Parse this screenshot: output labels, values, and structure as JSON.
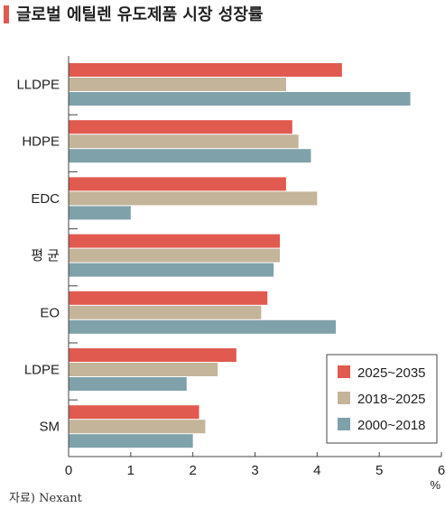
{
  "title": "글로벌 에틸렌 유도제품 시장 성장률",
  "source": "자료) Nexant",
  "colors": {
    "accent": "#e05a4f",
    "series": [
      "#e05a4f",
      "#c4b49a",
      "#7fa1aa"
    ],
    "axis": "#444444",
    "text": "#222222"
  },
  "chart_data": {
    "type": "bar",
    "orientation": "horizontal",
    "title": "글로벌 에틸렌 유도제품 시장 성장률",
    "xlabel": "",
    "ylabel": "",
    "unit": "%",
    "xlim": [
      0,
      6
    ],
    "xticks": [
      0,
      1,
      2,
      3,
      4,
      5,
      6
    ],
    "grid": false,
    "legend_position": "bottom-right",
    "categories": [
      "LLDPE",
      "HDPE",
      "EDC",
      "평 균",
      "EO",
      "LDPE",
      "SM"
    ],
    "series": [
      {
        "name": "2025~2035",
        "color": "#e05a4f",
        "values": [
          4.4,
          3.6,
          3.5,
          3.4,
          3.2,
          2.7,
          2.1
        ]
      },
      {
        "name": "2018~2025",
        "color": "#c4b49a",
        "values": [
          3.5,
          3.7,
          4.0,
          3.4,
          3.1,
          2.4,
          2.2
        ]
      },
      {
        "name": "2000~2018",
        "color": "#7fa1aa",
        "values": [
          5.5,
          3.9,
          1.0,
          3.3,
          4.3,
          1.9,
          2.0
        ]
      }
    ]
  }
}
